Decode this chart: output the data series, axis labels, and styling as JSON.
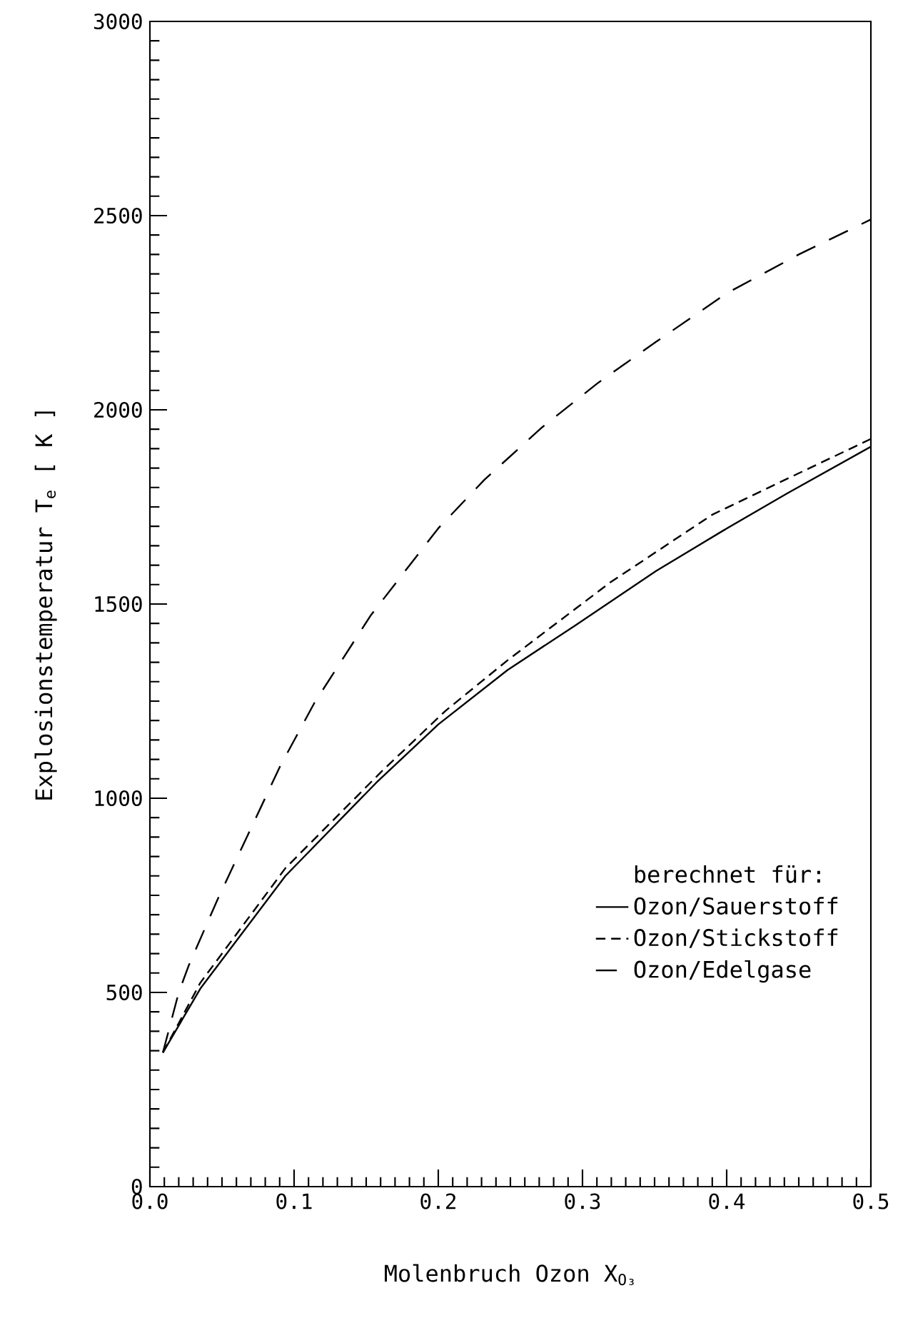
{
  "chart_data": {
    "type": "line",
    "xlabel": "Molenbruch Ozon  X$_{O₃}$",
    "ylabel": "Explosionstemperatur  T$_{e}$  [ K ]",
    "legend_title": "berechnet für:",
    "legend": "bottom right",
    "grid": false,
    "marker": "none",
    "xlim": [
      0,
      0.5
    ],
    "ylim": [
      0,
      3000
    ],
    "xticks": [
      {
        "value": 0,
        "label": "0.0"
      },
      {
        "value": 0.01,
        "label": null
      },
      {
        "value": 0.02,
        "label": null
      },
      {
        "value": 0.03,
        "label": null
      },
      {
        "value": 0.04,
        "label": null
      },
      {
        "value": 0.05,
        "label": null
      },
      {
        "value": 0.06,
        "label": null
      },
      {
        "value": 0.07,
        "label": null
      },
      {
        "value": 0.08,
        "label": null
      },
      {
        "value": 0.09,
        "label": null
      },
      0.1,
      {
        "value": 0.11,
        "label": null
      },
      {
        "value": 0.12,
        "label": null
      },
      {
        "value": 0.13,
        "label": null
      },
      {
        "value": 0.14,
        "label": null
      },
      {
        "value": 0.15,
        "label": null
      },
      {
        "value": 0.16,
        "label": null
      },
      {
        "value": 0.17,
        "label": null
      },
      {
        "value": 0.18,
        "label": null
      },
      {
        "value": 0.19,
        "label": null
      },
      0.2,
      {
        "value": 0.21,
        "label": null
      },
      {
        "value": 0.22,
        "label": null
      },
      {
        "value": 0.23,
        "label": null
      },
      {
        "value": 0.24,
        "label": null
      },
      {
        "value": 0.25,
        "label": null
      },
      {
        "value": 0.26,
        "label": null
      },
      {
        "value": 0.27,
        "label": null
      },
      {
        "value": 0.28,
        "label": null
      },
      {
        "value": 0.29,
        "label": null
      },
      0.3,
      {
        "value": 0.31,
        "label": null
      },
      {
        "value": 0.32,
        "label": null
      },
      {
        "value": 0.33,
        "label": null
      },
      {
        "value": 0.34,
        "label": null
      },
      {
        "value": 0.35,
        "label": null
      },
      {
        "value": 0.36,
        "label": null
      },
      {
        "value": 0.37,
        "label": null
      },
      {
        "value": 0.38,
        "label": null
      },
      {
        "value": 0.39,
        "label": null
      },
      0.4,
      {
        "value": 0.41,
        "label": null
      },
      {
        "value": 0.42,
        "label": null
      },
      {
        "value": 0.43,
        "label": null
      },
      {
        "value": 0.44,
        "label": null
      },
      {
        "value": 0.45,
        "label": null
      },
      {
        "value": 0.46,
        "label": null
      },
      {
        "value": 0.47,
        "label": null
      },
      {
        "value": 0.48,
        "label": null
      },
      {
        "value": 0.49,
        "label": null
      },
      0.5
    ],
    "yticks": [
      0,
      {
        "value": 50,
        "label": null
      },
      {
        "value": 100,
        "label": null
      },
      {
        "value": 150,
        "label": null
      },
      {
        "value": 200,
        "label": null
      },
      {
        "value": 250,
        "label": null
      },
      {
        "value": 300,
        "label": null
      },
      {
        "value": 350,
        "label": null
      },
      {
        "value": 400,
        "label": null
      },
      {
        "value": 450,
        "label": null
      },
      500,
      {
        "value": 550,
        "label": null
      },
      {
        "value": 600,
        "label": null
      },
      {
        "value": 650,
        "label": null
      },
      {
        "value": 700,
        "label": null
      },
      {
        "value": 750,
        "label": null
      },
      {
        "value": 800,
        "label": null
      },
      {
        "value": 850,
        "label": null
      },
      {
        "value": 900,
        "label": null
      },
      {
        "value": 950,
        "label": null
      },
      1000,
      {
        "value": 1050,
        "label": null
      },
      {
        "value": 1100,
        "label": null
      },
      {
        "value": 1150,
        "label": null
      },
      {
        "value": 1200,
        "label": null
      },
      {
        "value": 1250,
        "label": null
      },
      {
        "value": 1300,
        "label": null
      },
      {
        "value": 1350,
        "label": null
      },
      {
        "value": 1400,
        "label": null
      },
      {
        "value": 1450,
        "label": null
      },
      1500,
      {
        "value": 1550,
        "label": null
      },
      {
        "value": 1600,
        "label": null
      },
      {
        "value": 1650,
        "label": null
      },
      {
        "value": 1700,
        "label": null
      },
      {
        "value": 1750,
        "label": null
      },
      {
        "value": 1800,
        "label": null
      },
      {
        "value": 1850,
        "label": null
      },
      {
        "value": 1900,
        "label": null
      },
      {
        "value": 1950,
        "label": null
      },
      2000,
      {
        "value": 2050,
        "label": null
      },
      {
        "value": 2100,
        "label": null
      },
      {
        "value": 2150,
        "label": null
      },
      {
        "value": 2200,
        "label": null
      },
      {
        "value": 2250,
        "label": null
      },
      {
        "value": 2300,
        "label": null
      },
      {
        "value": 2350,
        "label": null
      },
      {
        "value": 2400,
        "label": null
      },
      {
        "value": 2450,
        "label": null
      },
      2500,
      {
        "value": 2550,
        "label": null
      },
      {
        "value": 2600,
        "label": null
      },
      {
        "value": 2650,
        "label": null
      },
      {
        "value": 2700,
        "label": null
      },
      {
        "value": 2750,
        "label": null
      },
      {
        "value": 2800,
        "label": null
      },
      {
        "value": 2850,
        "label": null
      },
      {
        "value": 2900,
        "label": null
      },
      {
        "value": 2950,
        "label": null
      },
      3000
    ],
    "series": [
      {
        "name": "Ozon/Sauerstoff",
        "color": "#000000",
        "line_style": "solid",
        "x": [
          0.009,
          0.035,
          0.094,
          0.157,
          0.2,
          0.248,
          0.295,
          0.351,
          0.398,
          0.442,
          0.5
        ],
        "values": [
          345,
          510,
          800,
          1040,
          1190,
          1330,
          1445,
          1585,
          1690,
          1785,
          1905
        ]
      },
      {
        "name": "Ozon/Stickstoff",
        "color": "#000000",
        "line_style": "dashed",
        "x": [
          0.009,
          0.035,
          0.094,
          0.161,
          0.205,
          0.248,
          0.319,
          0.39,
          0.449,
          0.5
        ],
        "values": [
          345,
          525,
          820,
          1070,
          1225,
          1355,
          1555,
          1730,
          1835,
          1925
        ]
      },
      {
        "name": "Ozon/Edelgase",
        "color": "#000000",
        "line_style": "dashed",
        "x": [
          0.009,
          0.02,
          0.027,
          0.047,
          0.09,
          0.114,
          0.153,
          0.2,
          0.232,
          0.272,
          0.311,
          0.351,
          0.4,
          0.45,
          0.5
        ],
        "values": [
          345,
          500,
          570,
          740,
          1080,
          1245,
          1470,
          1695,
          1820,
          1955,
          2070,
          2175,
          2300,
          2400,
          2490
        ]
      }
    ]
  }
}
